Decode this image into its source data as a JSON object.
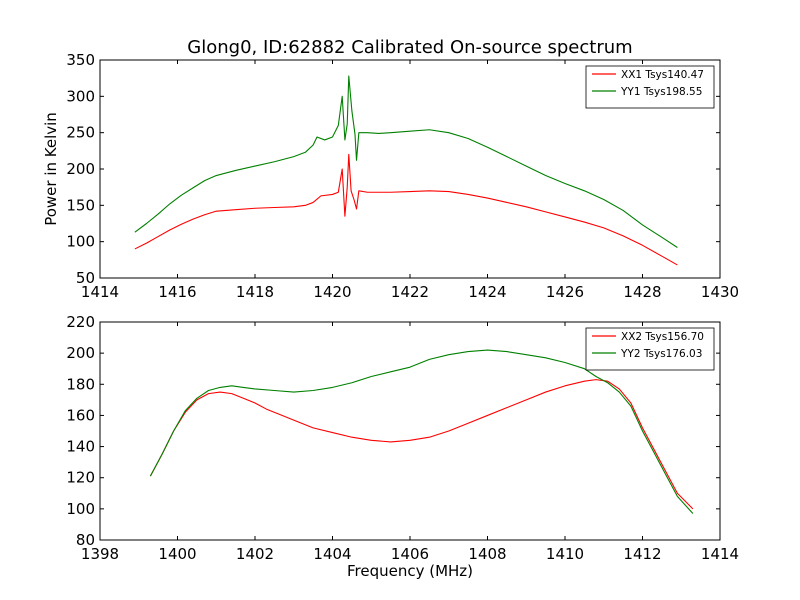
{
  "figure": {
    "title": "Glong0, ID:62882 Calibrated On-source spectrum"
  },
  "chart_data": [
    {
      "type": "line",
      "title": "Glong0, ID:62882 Calibrated On-source spectrum",
      "xlabel": "",
      "ylabel": "Power in Kelvin",
      "xlim": [
        1414,
        1430
      ],
      "ylim": [
        50,
        350
      ],
      "xticks": [
        1414,
        1416,
        1418,
        1420,
        1422,
        1424,
        1426,
        1428,
        1430
      ],
      "yticks": [
        50,
        100,
        150,
        200,
        250,
        300,
        350
      ],
      "grid": false,
      "legend_position": "top-right",
      "series": [
        {
          "name": "XX1 Tsys140.47",
          "color": "#ff0000",
          "points": [
            [
              1414.9,
              90
            ],
            [
              1415.2,
              98
            ],
            [
              1415.5,
              107
            ],
            [
              1415.8,
              116
            ],
            [
              1416.1,
              124
            ],
            [
              1416.4,
              131
            ],
            [
              1416.7,
              137
            ],
            [
              1417.0,
              142
            ],
            [
              1417.5,
              144
            ],
            [
              1418.0,
              146
            ],
            [
              1418.5,
              147
            ],
            [
              1419.0,
              148
            ],
            [
              1419.3,
              150
            ],
            [
              1419.5,
              154
            ],
            [
              1419.7,
              163
            ],
            [
              1420.0,
              165
            ],
            [
              1420.15,
              168
            ],
            [
              1420.25,
              200
            ],
            [
              1420.32,
              135
            ],
            [
              1420.38,
              175
            ],
            [
              1420.42,
              220
            ],
            [
              1420.48,
              170
            ],
            [
              1420.56,
              157
            ],
            [
              1420.62,
              145
            ],
            [
              1420.68,
              170
            ],
            [
              1420.9,
              168
            ],
            [
              1421.2,
              168
            ],
            [
              1421.5,
              168
            ],
            [
              1422.0,
              169
            ],
            [
              1422.5,
              170
            ],
            [
              1423.0,
              169
            ],
            [
              1423.5,
              165
            ],
            [
              1424.0,
              160
            ],
            [
              1424.5,
              154
            ],
            [
              1425.0,
              148
            ],
            [
              1425.5,
              141
            ],
            [
              1426.0,
              134
            ],
            [
              1426.5,
              127
            ],
            [
              1427.0,
              119
            ],
            [
              1427.5,
              108
            ],
            [
              1428.0,
              95
            ],
            [
              1428.5,
              80
            ],
            [
              1428.9,
              68
            ]
          ]
        },
        {
          "name": "YY1 Tsys198.55",
          "color": "#008000",
          "points": [
            [
              1414.9,
              113
            ],
            [
              1415.2,
              125
            ],
            [
              1415.5,
              138
            ],
            [
              1415.8,
              152
            ],
            [
              1416.1,
              164
            ],
            [
              1416.4,
              174
            ],
            [
              1416.7,
              184
            ],
            [
              1417.0,
              191
            ],
            [
              1417.5,
              198
            ],
            [
              1418.0,
              204
            ],
            [
              1418.5,
              210
            ],
            [
              1419.0,
              217
            ],
            [
              1419.3,
              223
            ],
            [
              1419.5,
              233
            ],
            [
              1419.6,
              244
            ],
            [
              1419.8,
              240
            ],
            [
              1420.0,
              244
            ],
            [
              1420.15,
              260
            ],
            [
              1420.25,
              300
            ],
            [
              1420.32,
              240
            ],
            [
              1420.38,
              262
            ],
            [
              1420.42,
              328
            ],
            [
              1420.5,
              280
            ],
            [
              1420.58,
              248
            ],
            [
              1420.62,
              212
            ],
            [
              1420.68,
              250
            ],
            [
              1420.9,
              250
            ],
            [
              1421.2,
              249
            ],
            [
              1421.5,
              250
            ],
            [
              1422.0,
              252
            ],
            [
              1422.5,
              254
            ],
            [
              1423.0,
              250
            ],
            [
              1423.5,
              242
            ],
            [
              1424.0,
              230
            ],
            [
              1424.5,
              217
            ],
            [
              1425.0,
              204
            ],
            [
              1425.5,
              191
            ],
            [
              1426.0,
              180
            ],
            [
              1426.5,
              170
            ],
            [
              1427.0,
              158
            ],
            [
              1427.5,
              143
            ],
            [
              1428.0,
              123
            ],
            [
              1428.5,
              106
            ],
            [
              1428.9,
              92
            ]
          ]
        }
      ]
    },
    {
      "type": "line",
      "title": "",
      "xlabel": "Frequency (MHz)",
      "ylabel": "",
      "xlim": [
        1398,
        1414
      ],
      "ylim": [
        80,
        220
      ],
      "xticks": [
        1398,
        1400,
        1402,
        1404,
        1406,
        1408,
        1410,
        1412,
        1414
      ],
      "yticks": [
        80,
        100,
        120,
        140,
        160,
        180,
        200,
        220
      ],
      "grid": false,
      "legend_position": "top-right",
      "series": [
        {
          "name": "XX2 Tsys156.70",
          "color": "#ff0000",
          "points": [
            [
              1399.3,
              121
            ],
            [
              1399.6,
              135
            ],
            [
              1399.9,
              150
            ],
            [
              1400.2,
              162
            ],
            [
              1400.5,
              170
            ],
            [
              1400.8,
              174
            ],
            [
              1401.1,
              175
            ],
            [
              1401.4,
              174
            ],
            [
              1401.7,
              171
            ],
            [
              1402.0,
              168
            ],
            [
              1402.3,
              164
            ],
            [
              1402.6,
              161
            ],
            [
              1403.0,
              157
            ],
            [
              1403.5,
              152
            ],
            [
              1404.0,
              149
            ],
            [
              1404.5,
              146
            ],
            [
              1405.0,
              144
            ],
            [
              1405.5,
              143
            ],
            [
              1406.0,
              144
            ],
            [
              1406.5,
              146
            ],
            [
              1407.0,
              150
            ],
            [
              1407.5,
              155
            ],
            [
              1408.0,
              160
            ],
            [
              1408.5,
              165
            ],
            [
              1409.0,
              170
            ],
            [
              1409.5,
              175
            ],
            [
              1410.0,
              179
            ],
            [
              1410.5,
              182
            ],
            [
              1410.8,
              183
            ],
            [
              1411.1,
              182
            ],
            [
              1411.4,
              177
            ],
            [
              1411.7,
              168
            ],
            [
              1412.0,
              152
            ],
            [
              1412.3,
              138
            ],
            [
              1412.6,
              124
            ],
            [
              1412.9,
              110
            ],
            [
              1413.3,
              100
            ]
          ]
        },
        {
          "name": "YY2 Tsys176.03",
          "color": "#008000",
          "points": [
            [
              1399.3,
              121
            ],
            [
              1399.6,
              135
            ],
            [
              1399.9,
              150
            ],
            [
              1400.2,
              163
            ],
            [
              1400.5,
              171
            ],
            [
              1400.8,
              176
            ],
            [
              1401.1,
              178
            ],
            [
              1401.4,
              179
            ],
            [
              1401.7,
              178
            ],
            [
              1402.0,
              177
            ],
            [
              1402.5,
              176
            ],
            [
              1403.0,
              175
            ],
            [
              1403.5,
              176
            ],
            [
              1404.0,
              178
            ],
            [
              1404.5,
              181
            ],
            [
              1405.0,
              185
            ],
            [
              1405.5,
              188
            ],
            [
              1406.0,
              191
            ],
            [
              1406.5,
              196
            ],
            [
              1407.0,
              199
            ],
            [
              1407.5,
              201
            ],
            [
              1408.0,
              202
            ],
            [
              1408.5,
              201
            ],
            [
              1409.0,
              199
            ],
            [
              1409.5,
              197
            ],
            [
              1410.0,
              194
            ],
            [
              1410.5,
              190
            ],
            [
              1410.8,
              185
            ],
            [
              1411.1,
              181
            ],
            [
              1411.4,
              175
            ],
            [
              1411.7,
              166
            ],
            [
              1412.0,
              150
            ],
            [
              1412.3,
              136
            ],
            [
              1412.6,
              122
            ],
            [
              1412.9,
              108
            ],
            [
              1413.3,
              97
            ]
          ]
        }
      ]
    }
  ]
}
